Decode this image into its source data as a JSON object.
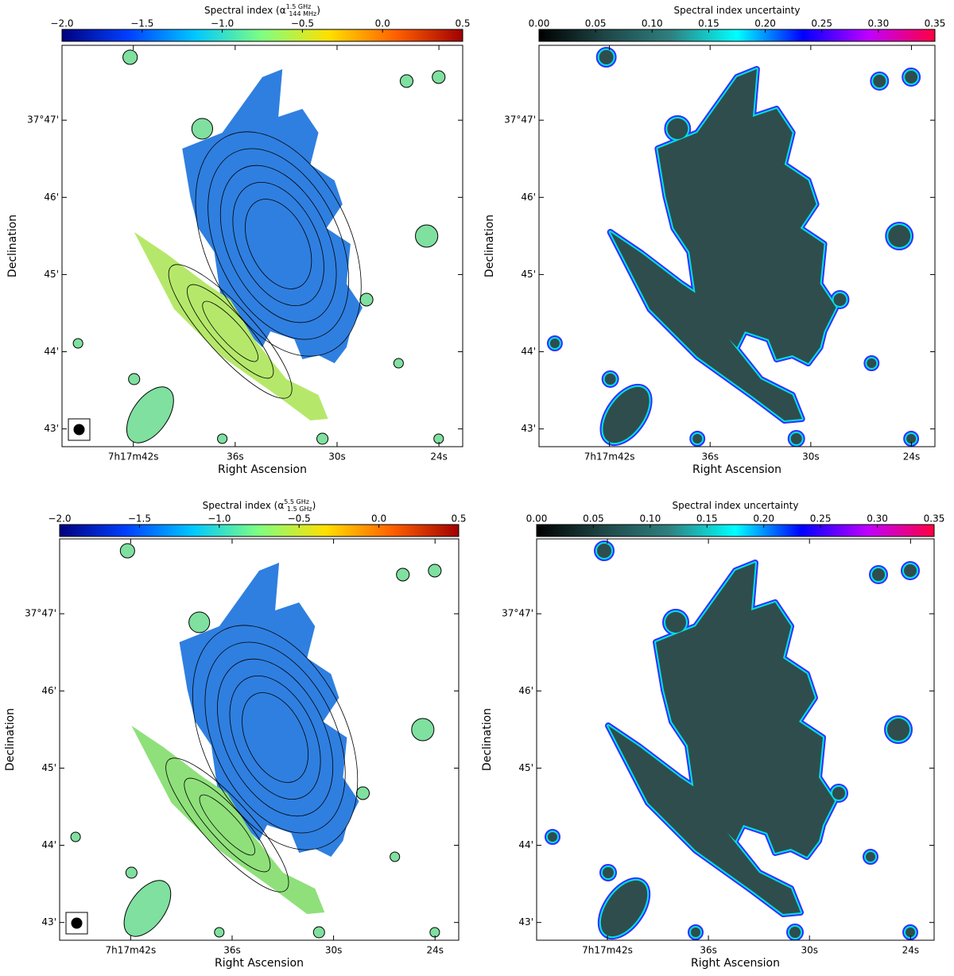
{
  "chart_data": [
    {
      "type": "image",
      "style": "index",
      "colorbar": {
        "label": "Spectral index (α",
        "sup": "1.5 GHz",
        "sub": "144 MHz",
        "label_end": ")",
        "lim": [
          -2,
          0.5
        ],
        "ticks": [
          {
            "value": -2,
            "label": "−2.0"
          },
          {
            "value": -1.5,
            "label": "−1.5"
          },
          {
            "value": -1,
            "label": "−1.0"
          },
          {
            "value": -0.5,
            "label": "−0.5"
          },
          {
            "value": 0,
            "label": "0.0"
          },
          0.5
        ],
        "colormap": [
          "#00007f",
          "#0040ff",
          "#00c8ff",
          "#80ff80",
          "#ffe000",
          "#ff6000",
          "#a00000"
        ]
      },
      "xlabel": "Right Ascension",
      "ylabel": "Declination",
      "xlim": [
        46.2,
        22.6
      ],
      "xticks": [
        {
          "value": 42,
          "label": "7h17m42s"
        },
        {
          "value": 36,
          "label": "36s"
        },
        {
          "value": 30,
          "label": "30s"
        },
        {
          "value": 24,
          "label": "24s"
        }
      ],
      "ylim": [
        42.77,
        47.97
      ],
      "yticks": [
        {
          "value": 47,
          "label": "37°47'"
        },
        {
          "value": 46,
          "label": "46'"
        },
        {
          "value": 45,
          "label": "45'"
        },
        {
          "value": 44,
          "label": "44'"
        },
        {
          "value": 43,
          "label": "43'"
        }
      ]
    },
    {
      "type": "image",
      "style": "uncertainty",
      "colorbar": {
        "label": "Spectral index uncertainty",
        "lim": [
          0,
          0.35
        ],
        "ticks": [
          {
            "value": 0,
            "label": "0.00"
          },
          {
            "value": 0.05,
            "label": "0.05"
          },
          {
            "value": 0.1,
            "label": "0.10"
          },
          {
            "value": 0.15,
            "label": "0.15"
          },
          {
            "value": 0.2,
            "label": "0.20"
          },
          {
            "value": 0.25,
            "label": "0.25"
          },
          {
            "value": 0.3,
            "label": "0.30"
          },
          {
            "value": 0.35,
            "label": "0.35"
          }
        ],
        "colormap": [
          "#000000",
          "#1e4646",
          "#2f8080",
          "#00ffff",
          "#0000ff",
          "#c000ff",
          "#ff0040"
        ]
      },
      "xlabel": "Right Ascension",
      "ylabel": "Declination",
      "xlim": [
        46.2,
        22.6
      ],
      "xticks": [
        {
          "value": 42,
          "label": "7h17m42s"
        },
        {
          "value": 36,
          "label": "36s"
        },
        {
          "value": 30,
          "label": "30s"
        },
        {
          "value": 24,
          "label": "24s"
        }
      ],
      "ylim": [
        42.77,
        47.97
      ],
      "yticks": [
        {
          "value": 47,
          "label": "37°47'"
        },
        {
          "value": 46,
          "label": "46'"
        },
        {
          "value": 45,
          "label": "45'"
        },
        {
          "value": 44,
          "label": "44'"
        },
        {
          "value": 43,
          "label": "43'"
        }
      ]
    },
    {
      "type": "image",
      "style": "index",
      "colorbar": {
        "label": "Spectral index (α",
        "sup": "5.5 GHz",
        "sub": "1.5 GHz",
        "label_end": ")",
        "lim": [
          -2,
          0.5
        ],
        "ticks": [
          {
            "value": -2,
            "label": "−2.0"
          },
          {
            "value": -1.5,
            "label": "−1.5"
          },
          {
            "value": -1,
            "label": "−1.0"
          },
          {
            "value": -0.5,
            "label": "−0.5"
          },
          {
            "value": 0,
            "label": "0.0"
          },
          0.5
        ],
        "colormap": [
          "#00007f",
          "#0040ff",
          "#00c8ff",
          "#80ff80",
          "#ffe000",
          "#ff6000",
          "#a00000"
        ]
      },
      "xlabel": "Right Ascension",
      "ylabel": "Declination",
      "xlim": [
        46.2,
        22.6
      ],
      "xticks": [
        {
          "value": 42,
          "label": "7h17m42s"
        },
        {
          "value": 36,
          "label": "36s"
        },
        {
          "value": 30,
          "label": "30s"
        },
        {
          "value": 24,
          "label": "24s"
        }
      ],
      "ylim": [
        42.77,
        47.97
      ],
      "yticks": [
        {
          "value": 47,
          "label": "37°47'"
        },
        {
          "value": 46,
          "label": "46'"
        },
        {
          "value": 45,
          "label": "45'"
        },
        {
          "value": 44,
          "label": "44'"
        },
        {
          "value": 43,
          "label": "43'"
        }
      ]
    },
    {
      "type": "image",
      "style": "uncertainty",
      "colorbar": {
        "label": "Spectral index uncertainty",
        "lim": [
          0,
          0.35
        ],
        "ticks": [
          {
            "value": 0,
            "label": "0.00"
          },
          {
            "value": 0.05,
            "label": "0.05"
          },
          {
            "value": 0.1,
            "label": "0.10"
          },
          {
            "value": 0.15,
            "label": "0.15"
          },
          {
            "value": 0.2,
            "label": "0.20"
          },
          {
            "value": 0.25,
            "label": "0.25"
          },
          {
            "value": 0.3,
            "label": "0.30"
          },
          {
            "value": 0.35,
            "label": "0.35"
          }
        ],
        "colormap": [
          "#000000",
          "#1e4646",
          "#2f8080",
          "#00ffff",
          "#0000ff",
          "#c000ff",
          "#ff0040"
        ]
      },
      "xlabel": "Right Ascension",
      "ylabel": "Declination",
      "xlim": [
        46.2,
        22.6
      ],
      "xticks": [
        {
          "value": 42,
          "label": "7h17m42s"
        },
        {
          "value": 36,
          "label": "36s"
        },
        {
          "value": 30,
          "label": "30s"
        },
        {
          "value": 24,
          "label": "24s"
        }
      ],
      "ylim": [
        42.77,
        47.97
      ],
      "yticks": [
        {
          "value": 47,
          "label": "37°47'"
        },
        {
          "value": 46,
          "label": "46'"
        },
        {
          "value": 45,
          "label": "45'"
        },
        {
          "value": 44,
          "label": "44'"
        },
        {
          "value": 43,
          "label": "43'"
        }
      ]
    }
  ]
}
